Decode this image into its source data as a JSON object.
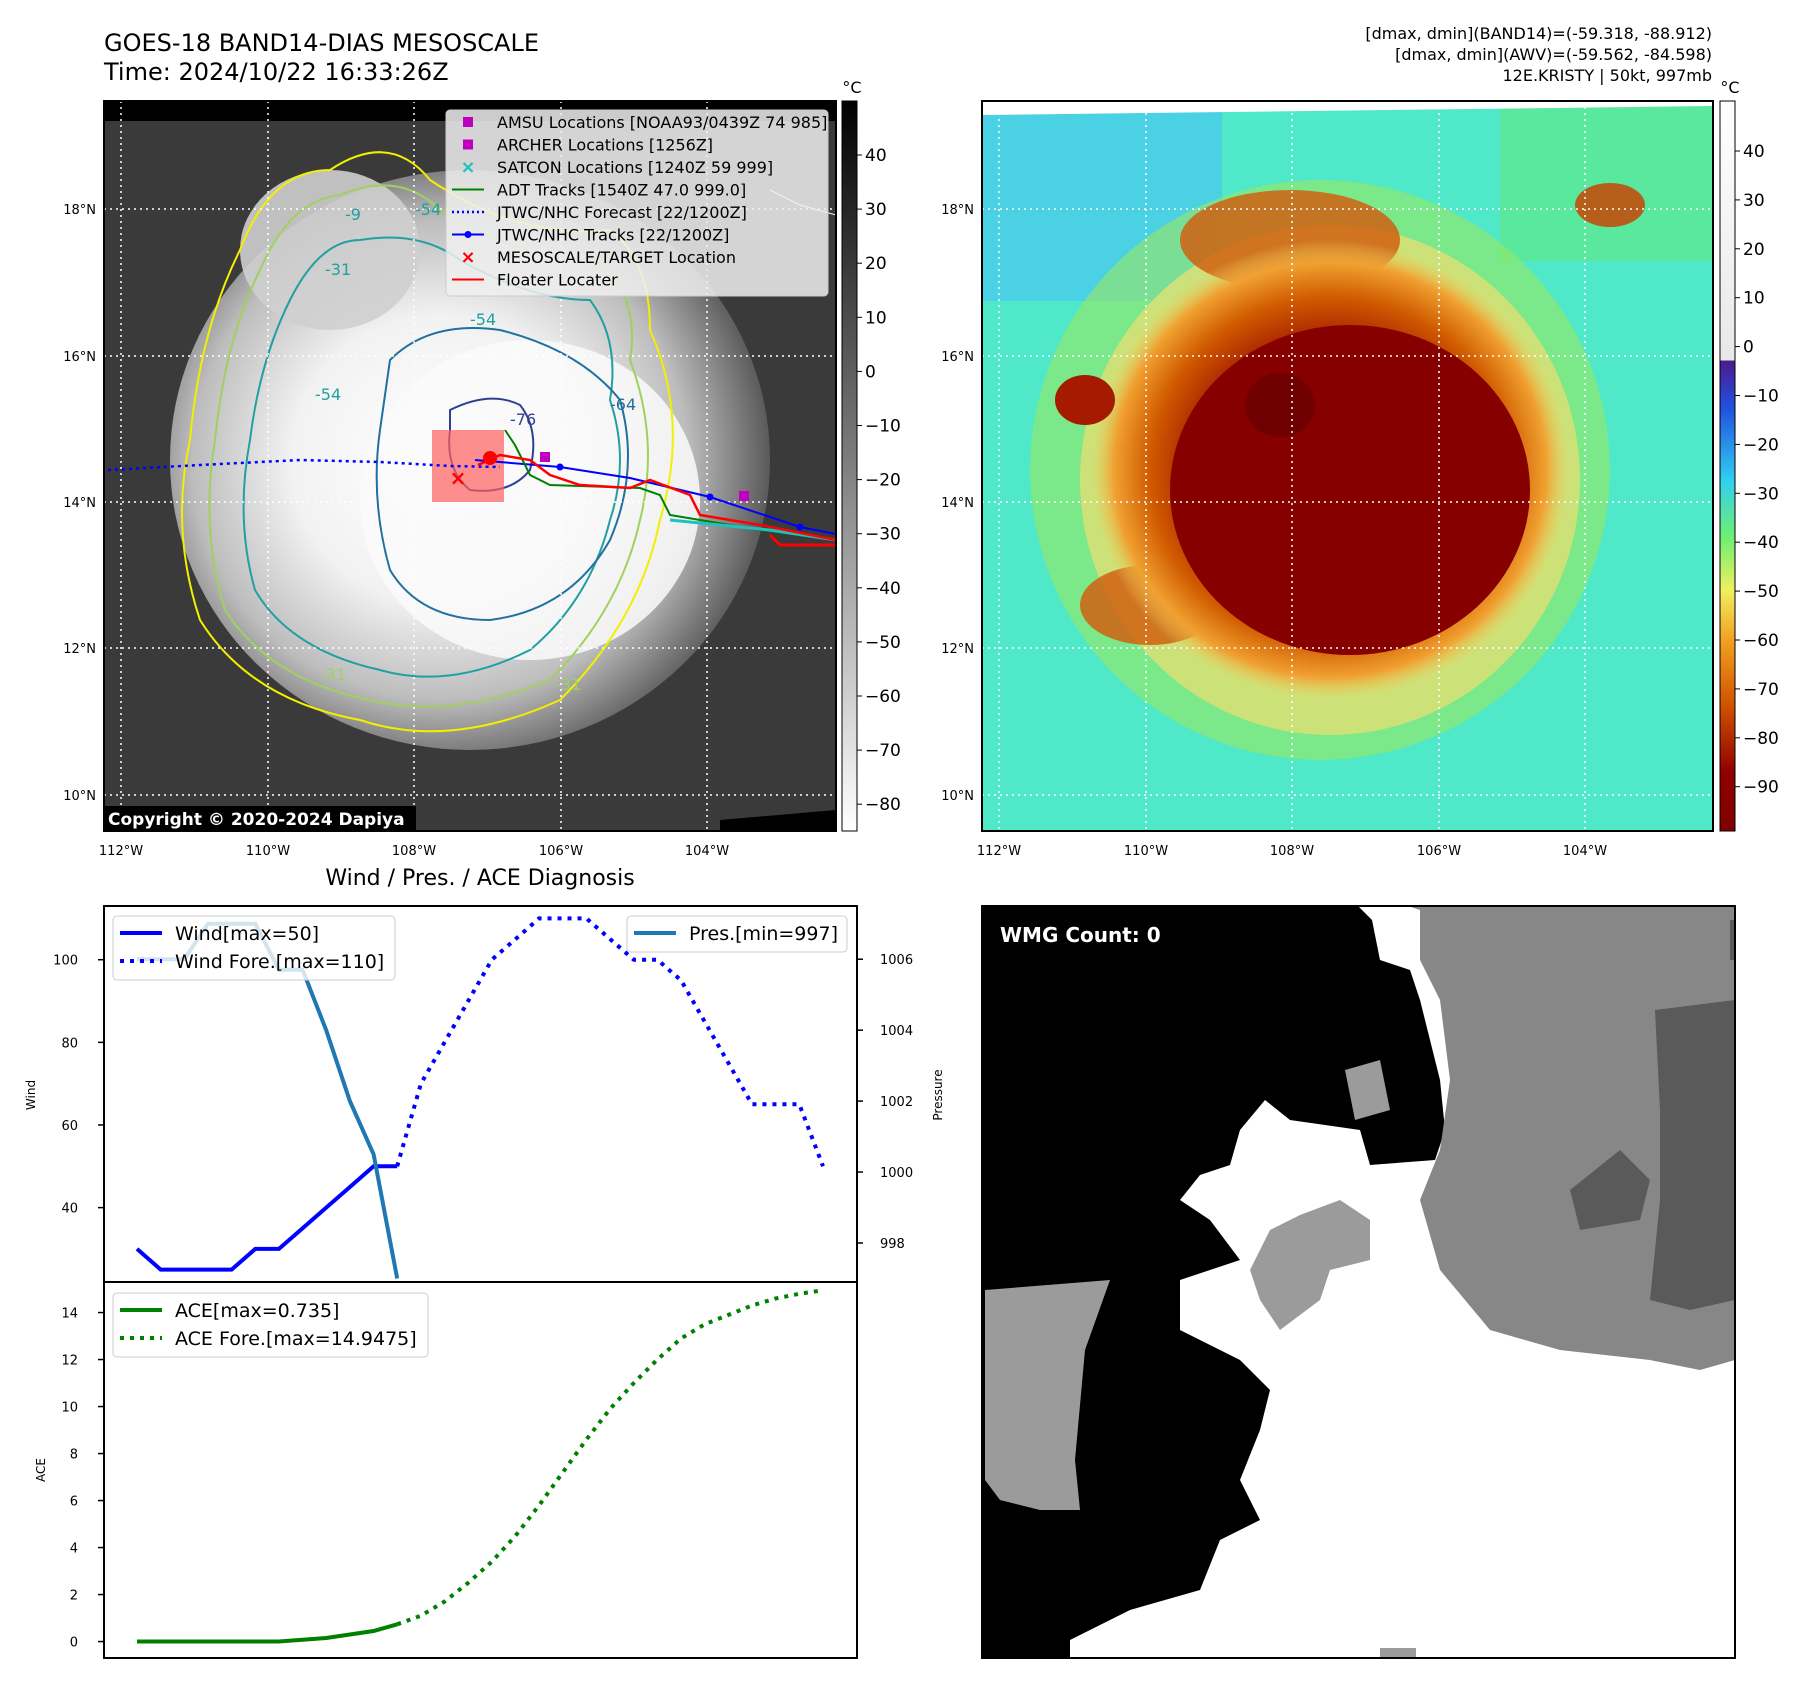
{
  "header": {
    "title": "GOES-18 BAND14-DIAS MESOSCALE",
    "time": "Time: 2024/10/22 16:33:26Z",
    "stats1": "[dmax, dmin](BAND14)=(-59.318, -88.912)",
    "stats2": "[dmax, dmin](AWV)=(-59.562, -84.598)",
    "storm": "12E.KRISTY | 50kt, 997mb"
  },
  "copyright": "Copyright © 2020-2024 Dapiya",
  "map": {
    "lon_ticks": [
      "112°W",
      "110°W",
      "108°W",
      "106°W",
      "104°W"
    ],
    "lat_ticks": [
      "18°N",
      "16°N",
      "14°N",
      "12°N",
      "10°N"
    ],
    "contour_labels": [
      "-9",
      "-31",
      "-54",
      "-54",
      "-54",
      "-64",
      "-76",
      "-31",
      "-31"
    ],
    "unit": "°C",
    "cbar_left": [
      "40",
      "30",
      "20",
      "10",
      "0",
      "−10",
      "−20",
      "−30",
      "−40",
      "−50",
      "−60",
      "−70",
      "−80"
    ],
    "cbar_right": [
      "40",
      "30",
      "20",
      "10",
      "0",
      "−10",
      "−20",
      "−30",
      "−40",
      "−50",
      "−60",
      "−70",
      "−80",
      "−90"
    ]
  },
  "legend": [
    {
      "label": "AMSU Locations [NOAA93/0439Z 74 985]",
      "color": "#c000c0",
      "marker": "square"
    },
    {
      "label": "ARCHER Locations [1256Z]",
      "color": "#c000c0",
      "marker": "square"
    },
    {
      "label": "SATCON Locations [1240Z 59 999]",
      "color": "#20c0c0",
      "marker": "x"
    },
    {
      "label": "ADT Tracks [1540Z 47.0 999.0]",
      "color": "#008000",
      "marker": "line"
    },
    {
      "label": "JTWC/NHC Forecast [22/1200Z]",
      "color": "#0000ff",
      "marker": "dotted"
    },
    {
      "label": "JTWC/NHC Tracks [22/1200Z]",
      "color": "#0000ff",
      "marker": "line-dot"
    },
    {
      "label": "MESOSCALE/TARGET Location",
      "color": "#ff0000",
      "marker": "x"
    },
    {
      "label": "Floater Locater",
      "color": "#ff0000",
      "marker": "line"
    }
  ],
  "colors": {
    "wind": "#0000ff",
    "pres": "#1f77b4",
    "ace": "#008000"
  },
  "diagnosis_title": "Wind / Pres. / ACE Diagnosis",
  "wmg_label": "WMG Count: 0",
  "chart_data": [
    {
      "type": "line",
      "title": "Wind / Pres. / ACE Diagnosis",
      "ylabel": "Wind",
      "y2label": "Pressure",
      "ylim": [
        22,
        113
      ],
      "y2lim": [
        996.9,
        1007.5
      ],
      "yticks": [
        "40",
        "60",
        "80",
        "100"
      ],
      "y2ticks": [
        "998",
        "1000",
        "1002",
        "1004",
        "1006"
      ],
      "legend_left": [
        "Wind[max=50]",
        "Wind Fore.[max=110]"
      ],
      "legend_right": [
        "Pres.[min=997]"
      ],
      "series": [
        {
          "name": "Wind[max=50]",
          "style": "solid",
          "x": [
            0,
            1,
            2,
            3,
            4,
            5,
            6,
            7,
            8,
            9,
            10,
            11
          ],
          "values": [
            30,
            25,
            25,
            25,
            25,
            30,
            30,
            35,
            40,
            45,
            50,
            50
          ]
        },
        {
          "name": "Wind Fore.[max=110]",
          "style": "dotted",
          "x": [
            11,
            12,
            13,
            14,
            15,
            16,
            17,
            18,
            19,
            20,
            21,
            22,
            23,
            24,
            25,
            26,
            27,
            28,
            29
          ],
          "values": [
            50,
            70,
            80,
            90,
            100,
            105,
            110,
            110,
            110,
            105,
            100,
            100,
            95,
            85,
            75,
            65,
            65,
            65,
            50
          ]
        },
        {
          "name": "Pres.[min=997]",
          "axis": "right",
          "x": [
            0,
            1,
            2,
            3,
            4,
            5,
            6,
            7,
            8,
            9,
            10,
            11
          ],
          "values": [
            1006,
            1006,
            1006,
            1007,
            1007,
            1007,
            1005.7,
            1005.7,
            1004,
            1002,
            1000.5,
            997
          ]
        }
      ]
    },
    {
      "type": "line",
      "ylabel": "ACE",
      "ylim": [
        -0.7,
        15.3
      ],
      "yticks": [
        "0",
        "2",
        "4",
        "6",
        "8",
        "10",
        "12",
        "14"
      ],
      "legend": [
        "ACE[max=0.735]",
        "ACE Fore.[max=14.9475]"
      ],
      "series": [
        {
          "name": "ACE[max=0.735]",
          "style": "solid",
          "x": [
            0,
            2,
            4,
            6,
            8,
            10,
            11
          ],
          "values": [
            0,
            0,
            0,
            0,
            0.15,
            0.45,
            0.735
          ]
        },
        {
          "name": "ACE Fore.[max=14.9475]",
          "style": "dotted",
          "x": [
            11,
            12,
            13,
            14,
            15,
            16,
            17,
            18,
            19,
            20,
            21,
            22,
            23,
            24,
            25,
            26,
            27,
            28,
            29
          ],
          "values": [
            0.735,
            1.1,
            1.7,
            2.5,
            3.4,
            4.5,
            5.8,
            7.2,
            8.6,
            9.9,
            11,
            12,
            12.9,
            13.5,
            13.9,
            14.3,
            14.6,
            14.8,
            14.9475
          ]
        }
      ]
    }
  ]
}
